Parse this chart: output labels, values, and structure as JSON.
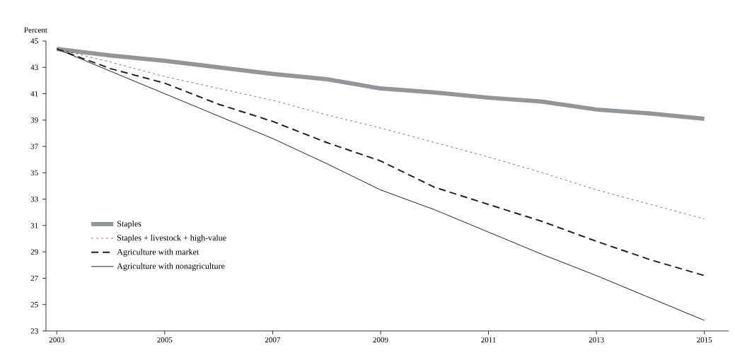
{
  "chart_data": {
    "type": "line",
    "ylabel": "Percent",
    "x": [
      2003,
      2004,
      2005,
      2006,
      2007,
      2008,
      2009,
      2010,
      2011,
      2012,
      2013,
      2014,
      2015
    ],
    "xlim": [
      2002.8,
      2015.45
    ],
    "xticks": [
      2003,
      2005,
      2007,
      2009,
      2011,
      2013,
      2015
    ],
    "ylim": [
      23,
      45
    ],
    "yticks": [
      23,
      25,
      27,
      29,
      31,
      33,
      35,
      37,
      39,
      41,
      43,
      45
    ],
    "legend": "left",
    "grid": false,
    "series": [
      {
        "name": "Staples",
        "color": "#939598",
        "line_style": "solid",
        "values": [
          44.4,
          43.9,
          43.5,
          43.0,
          42.5,
          42.1,
          41.4,
          41.1,
          40.7,
          40.4,
          39.8,
          39.5,
          39.1
        ]
      },
      {
        "name": "Staples + livestock + high-value",
        "color": "#231f20",
        "line_style": "dotted",
        "values": [
          44.4,
          43.4,
          42.3,
          41.4,
          40.5,
          39.4,
          38.4,
          37.3,
          36.2,
          35.0,
          33.7,
          32.6,
          31.5
        ]
      },
      {
        "name": "Agriculture with market",
        "color": "#231f20",
        "line_style": "dashed",
        "values": [
          44.4,
          42.9,
          41.8,
          40.2,
          38.9,
          37.3,
          35.9,
          33.9,
          32.6,
          31.3,
          29.8,
          28.4,
          27.2
        ]
      },
      {
        "name": "Agriculture with nonagriculture",
        "color": "#231f20",
        "line_style": "solid",
        "values": [
          44.4,
          42.7,
          41.0,
          39.3,
          37.6,
          35.7,
          33.7,
          32.2,
          30.5,
          28.8,
          27.2,
          25.5,
          23.8
        ]
      }
    ]
  }
}
